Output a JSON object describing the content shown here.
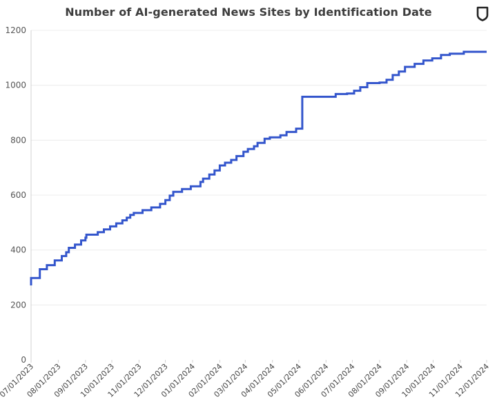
{
  "title": "Number of AI-generated News Sites by Identification Date",
  "logo_icon": "shield-icon",
  "colors": {
    "line": "#3355cc",
    "grid": "#ececec",
    "axis": "#d0d0d0",
    "text": "#3d3d3d"
  },
  "chart_data": {
    "type": "line",
    "title": "Number of AI-generated News Sites by Identification Date",
    "xlabel": "",
    "ylabel": "",
    "ylim": [
      0,
      1200
    ],
    "yticks": [
      0,
      200,
      400,
      600,
      800,
      1000,
      1200
    ],
    "xlim": [
      "2023-07-01",
      "2024-12-01"
    ],
    "xtick_labels": [
      "07/01/2023",
      "08/01/2023",
      "09/01/2023",
      "10/01/2023",
      "11/01/2023",
      "12/01/2023",
      "01/01/2024",
      "02/01/2024",
      "03/01/2024",
      "04/01/2024",
      "05/01/2024",
      "06/01/2024",
      "07/01/2024",
      "08/01/2024",
      "09/01/2024",
      "10/01/2024",
      "11/01/2024",
      "12/01/2024"
    ],
    "grid": true,
    "step": true,
    "series": [
      {
        "x": [
          "2023-07-01",
          "2023-07-11",
          "2023-07-19",
          "2023-07-28",
          "2023-08-05",
          "2023-08-10",
          "2023-08-13",
          "2023-08-20",
          "2023-08-27",
          "2023-09-01",
          "2023-09-02",
          "2023-09-15",
          "2023-09-22",
          "2023-09-29",
          "2023-10-06",
          "2023-10-13",
          "2023-10-18",
          "2023-10-22",
          "2023-10-26",
          "2023-11-05",
          "2023-11-15",
          "2023-11-25",
          "2023-12-01",
          "2023-12-06",
          "2023-12-10",
          "2023-12-20",
          "2023-12-30",
          "2024-01-01",
          "2024-01-10",
          "2024-01-13",
          "2024-01-20",
          "2024-01-26",
          "2024-02-01",
          "2024-02-07",
          "2024-02-14",
          "2024-02-20",
          "2024-02-28",
          "2024-03-04",
          "2024-03-11",
          "2024-03-15",
          "2024-03-23",
          "2024-03-29",
          "2024-04-10",
          "2024-04-17",
          "2024-04-28",
          "2024-05-05",
          "2024-05-12",
          "2024-06-12",
          "2024-06-25",
          "2024-07-03",
          "2024-07-10",
          "2024-07-18",
          "2024-08-01",
          "2024-08-09",
          "2024-08-16",
          "2024-08-23",
          "2024-08-30",
          "2024-09-10",
          "2024-09-20",
          "2024-09-30",
          "2024-10-10",
          "2024-10-20",
          "2024-10-26",
          "2024-11-05",
          "2024-11-15",
          "2024-11-25",
          "2024-12-01"
        ],
        "values": [
          298,
          330,
          345,
          362,
          378,
          392,
          408,
          420,
          435,
          445,
          456,
          465,
          475,
          486,
          497,
          508,
          518,
          528,
          535,
          545,
          555,
          568,
          582,
          598,
          612,
          622,
          632,
          632,
          648,
          660,
          675,
          690,
          708,
          718,
          728,
          742,
          758,
          768,
          778,
          790,
          805,
          810,
          818,
          830,
          842,
          958,
          958,
          968,
          970,
          980,
          993,
          1008,
          1010,
          1020,
          1037,
          1050,
          1067,
          1078,
          1090,
          1098,
          1110,
          1115,
          1115,
          1122,
          1122,
          1122,
          1122
        ]
      }
    ]
  }
}
